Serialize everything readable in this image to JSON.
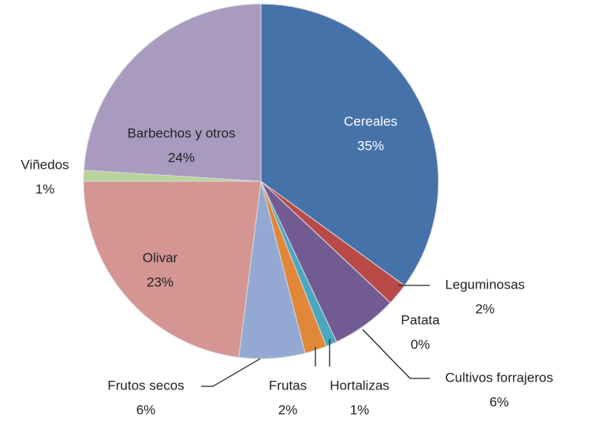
{
  "chart_data": {
    "type": "pie",
    "categories": [
      "Cereales",
      "Leguminosas",
      "Patata",
      "Cultivos forrajeros",
      "Hortalizas",
      "Frutas",
      "Frutos secos",
      "Olivar",
      "Viñedos",
      "Barbechos y otros"
    ],
    "values": [
      35,
      2,
      0,
      6,
      1,
      2,
      6,
      23,
      1,
      24
    ],
    "value_labels": [
      "35%",
      "2%",
      "0%",
      "6%",
      "1%",
      "2%",
      "6%",
      "23%",
      "1%",
      "24%"
    ],
    "colors": [
      "#4672aa",
      "#b94a48",
      "#9bbb59",
      "#725b93",
      "#4aa7c0",
      "#e0873a",
      "#93a9d4",
      "#d49593",
      "#b8d49b",
      "#a99bc0"
    ]
  }
}
